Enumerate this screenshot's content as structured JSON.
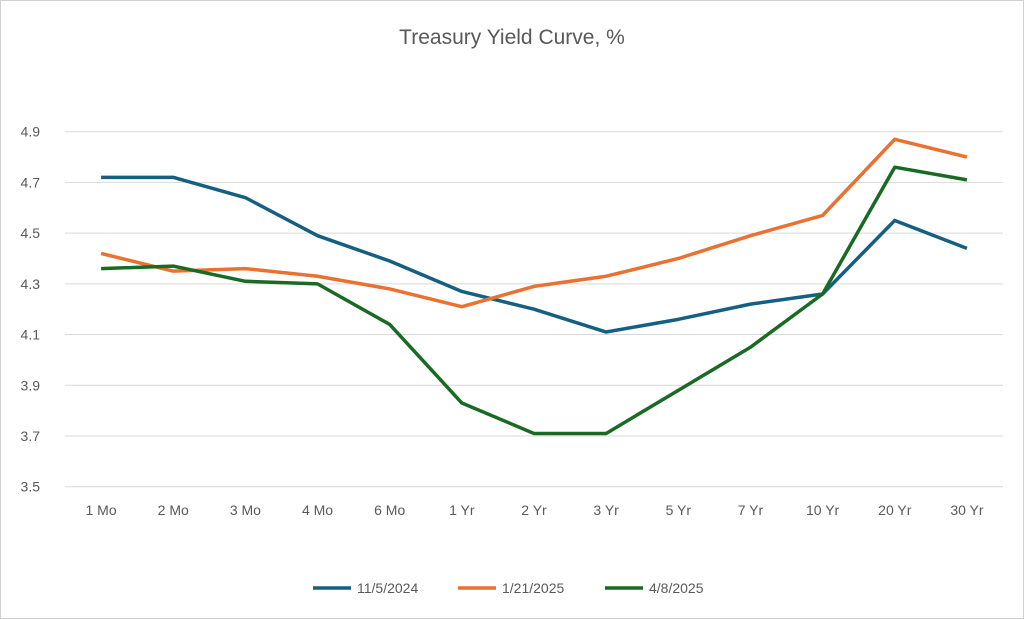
{
  "chart_data": {
    "type": "line",
    "title": "Treasury Yield Curve, %",
    "xlabel": "",
    "ylabel": "",
    "categories": [
      "1 Mo",
      "2 Mo",
      "3 Mo",
      "4 Mo",
      "6 Mo",
      "1 Yr",
      "2 Yr",
      "3 Yr",
      "5 Yr",
      "7 Yr",
      "10 Yr",
      "20 Yr",
      "30 Yr"
    ],
    "ylim": [
      3.5,
      4.9
    ],
    "yticks": [
      "3.5",
      "3.7",
      "3.9",
      "4.1",
      "4.3",
      "4.5",
      "4.7",
      "4.9"
    ],
    "grid": true,
    "legend": "bottom",
    "series": [
      {
        "name": "11/5/2024",
        "color": "#156082",
        "values": [
          4.72,
          4.72,
          4.64,
          4.49,
          4.39,
          4.27,
          4.2,
          4.11,
          4.16,
          4.22,
          4.26,
          4.55,
          4.44
        ]
      },
      {
        "name": "1/21/2025",
        "color": "#E97132",
        "values": [
          4.42,
          4.35,
          4.36,
          4.33,
          4.28,
          4.21,
          4.29,
          4.33,
          4.4,
          4.49,
          4.57,
          4.87,
          4.8
        ]
      },
      {
        "name": "4/8/2025",
        "color": "#196B24",
        "values": [
          4.36,
          4.37,
          4.31,
          4.3,
          4.14,
          3.83,
          3.71,
          3.71,
          3.88,
          4.05,
          4.26,
          4.76,
          4.71
        ]
      }
    ]
  }
}
